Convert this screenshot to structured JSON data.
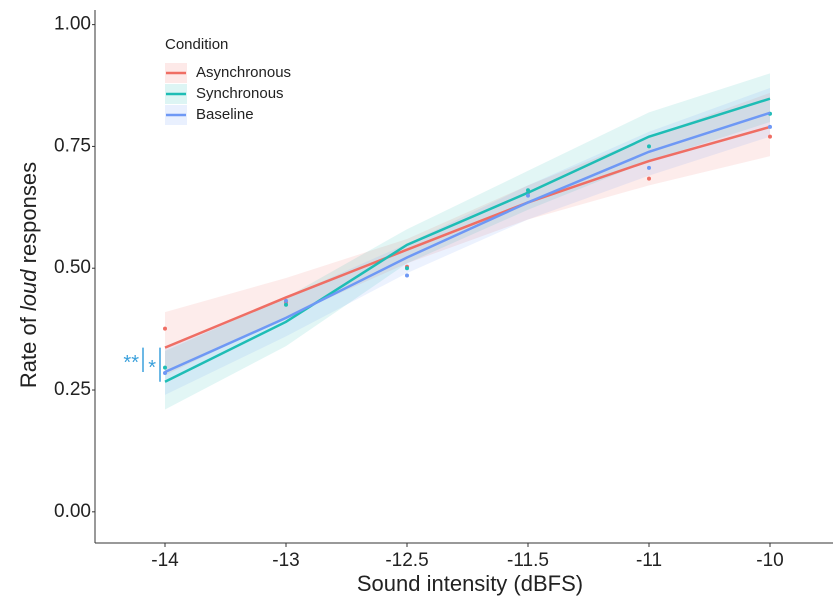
{
  "chart_data": {
    "type": "line",
    "xlabel": "Sound intensity (dBFS)",
    "ylabel": [
      "Rate of ",
      "loud",
      " responses"
    ],
    "categories": [
      "-14",
      "-13",
      "-12.5",
      "-11.5",
      "-11",
      "-10"
    ],
    "ylim": [
      -0.064,
      1.03
    ],
    "yticks": [
      {
        "value": 0,
        "label": "0.00"
      },
      {
        "value": 0.25,
        "label": "0.25"
      },
      {
        "value": 0.5,
        "label": "0.50"
      },
      {
        "value": 0.75,
        "label": "0.75"
      },
      {
        "value": 1,
        "label": "1.00"
      }
    ],
    "legend_title": "Condition",
    "legend_position": "top-left",
    "grid": false,
    "series": [
      {
        "name": "Asynchronous",
        "color": "#ef6e64",
        "values": [
          0.337,
          0.44,
          0.538,
          0.635,
          0.72,
          0.79
        ],
        "lower": [
          0.28,
          0.4,
          0.51,
          0.6,
          0.67,
          0.73
        ],
        "upper": [
          0.41,
          0.48,
          0.56,
          0.67,
          0.77,
          0.86
        ],
        "points": [
          0.376,
          0.43,
          0.503,
          0.655,
          0.684,
          0.77
        ]
      },
      {
        "name": "Synchronous",
        "color": "#1ebdb5",
        "values": [
          0.267,
          0.39,
          0.548,
          0.655,
          0.77,
          0.848
        ],
        "lower": [
          0.21,
          0.34,
          0.51,
          0.62,
          0.72,
          0.8
        ],
        "upper": [
          0.33,
          0.44,
          0.58,
          0.7,
          0.82,
          0.9
        ],
        "points": [
          0.296,
          0.425,
          0.5,
          0.66,
          0.75,
          0.817
        ]
      },
      {
        "name": "Baseline",
        "color": "#6e98f5",
        "values": [
          0.287,
          0.398,
          0.522,
          0.635,
          0.739,
          0.819
        ],
        "lower": [
          0.24,
          0.36,
          0.49,
          0.6,
          0.69,
          0.77
        ],
        "upper": [
          0.34,
          0.44,
          0.55,
          0.67,
          0.78,
          0.87
        ],
        "points": [
          0.285,
          0.433,
          0.485,
          0.649,
          0.706,
          0.79
        ]
      }
    ],
    "annotations": [
      {
        "text": "**",
        "color": "#3aa0dc"
      },
      {
        "text": "*",
        "color": "#3aa0dc"
      }
    ]
  }
}
